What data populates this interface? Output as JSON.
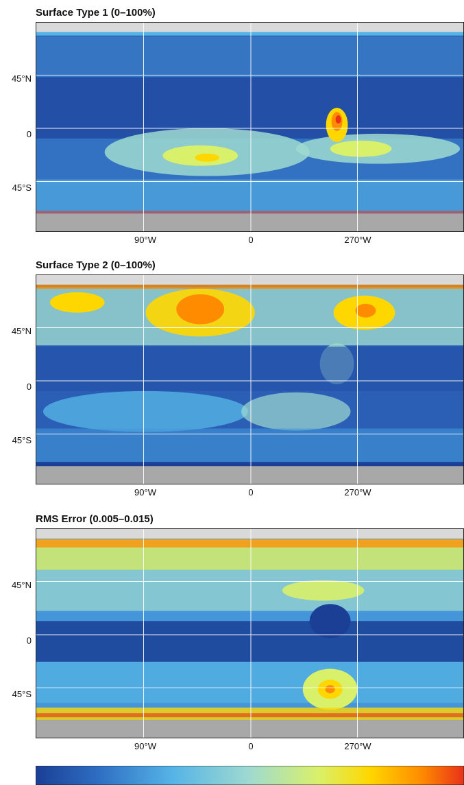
{
  "panels": [
    {
      "title": "Surface Type 1 (0–100%)",
      "y_labels": [
        "45°N",
        "0",
        "45°S"
      ],
      "x_labels": [
        "90°W",
        "0",
        "270°W"
      ]
    },
    {
      "title": "Surface Type 2 (0–100%)",
      "y_labels": [
        "45°N",
        "0",
        "45°S"
      ],
      "x_labels": [
        "90°W",
        "0",
        "270°W"
      ]
    },
    {
      "title": "RMS Error (0.005–0.015)",
      "y_labels": [
        "45°N",
        "0",
        "45°S"
      ],
      "x_labels": [
        "90°W",
        "0",
        "270°W"
      ]
    }
  ],
  "colors": {
    "colormap": [
      "#1a3f95",
      "#2f6fc4",
      "#55b4e6",
      "#9fdad0",
      "#d9f06a",
      "#ffd700",
      "#ff8c00",
      "#e8311a"
    ],
    "polar_cap": "#a8a8a8",
    "grid": "#ffffff"
  }
}
